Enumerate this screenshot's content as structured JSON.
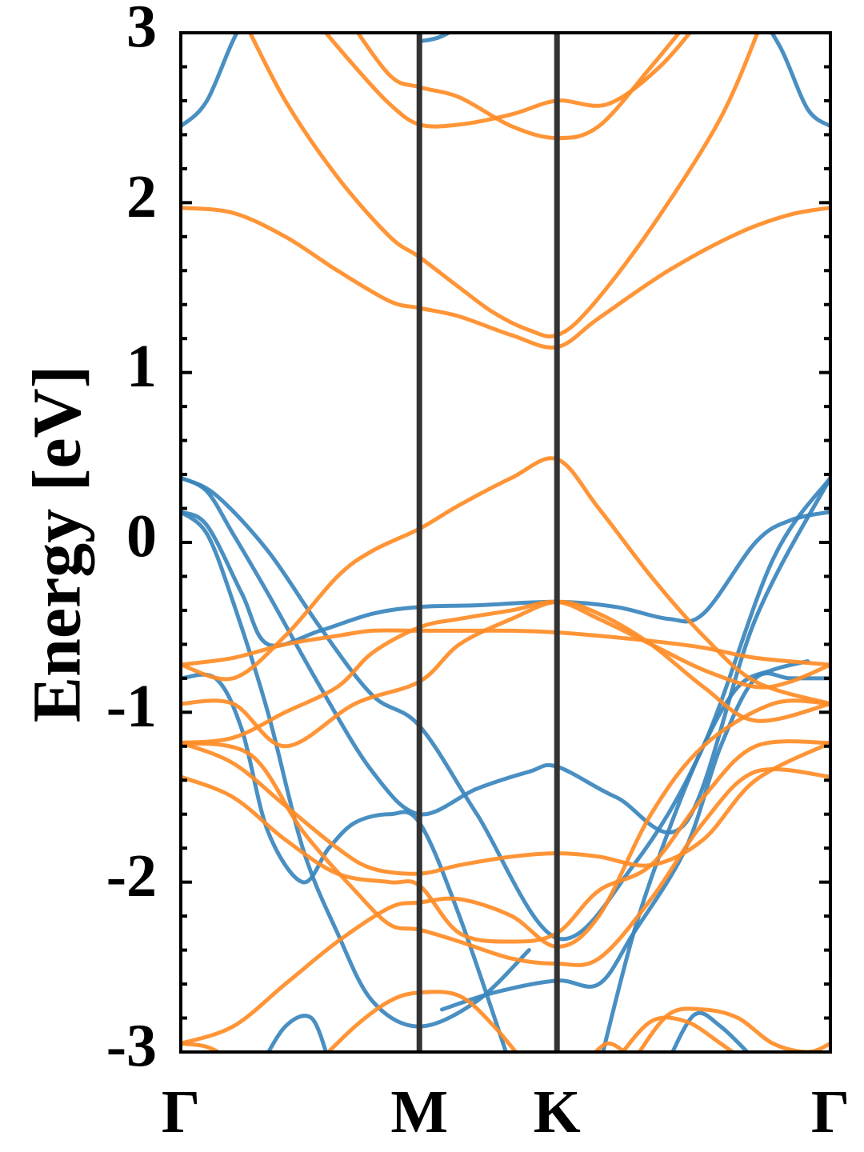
{
  "chart_data": {
    "type": "line",
    "ylabel": "Energy [eV]",
    "ylim": [
      -3,
      3
    ],
    "xlim": [
      0,
      3.73
    ],
    "y_ticks": [
      "3",
      "2",
      "1",
      "0",
      "-1",
      "-2",
      "-3"
    ],
    "y_tick_values": [
      3,
      2,
      1,
      0,
      -1,
      -2,
      -3
    ],
    "high_symmetry_points": [
      {
        "label": "Γ",
        "x": 0
      },
      {
        "label": "M",
        "x": 1.37
      },
      {
        "label": "K",
        "x": 2.16
      },
      {
        "label": "Γ",
        "x": 3.73
      }
    ],
    "colors": {
      "blue": "#3a85bd",
      "orange": "#ff8c26",
      "kpath_line": "#333333"
    },
    "series": [
      {
        "color": "#3a85bd",
        "x": [
          0,
          0.15,
          0.35,
          0.6
        ],
        "y": [
          2.45,
          2.6,
          3.05,
          3.3
        ]
      },
      {
        "color": "#3a85bd",
        "x": [
          1.37,
          1.5,
          1.7
        ],
        "y": [
          2.95,
          2.98,
          3.1
        ]
      },
      {
        "color": "#3a85bd",
        "x": [
          3.3,
          3.45,
          3.6,
          3.73
        ],
        "y": [
          3.15,
          2.9,
          2.55,
          2.45
        ]
      },
      {
        "color": "#ff8c26",
        "x": [
          0.35,
          0.6,
          0.9,
          1.2,
          1.37,
          1.6,
          1.8,
          2.0,
          2.16,
          2.35,
          2.7,
          3.1,
          3.35
        ],
        "y": [
          3.1,
          2.6,
          2.15,
          1.8,
          1.68,
          1.5,
          1.35,
          1.25,
          1.22,
          1.38,
          1.85,
          2.5,
          3.1
        ]
      },
      {
        "color": "#ff8c26",
        "x": [
          0,
          0.3,
          0.6,
          0.9,
          1.2,
          1.37,
          1.6,
          1.9,
          2.16,
          2.4,
          2.8,
          3.2,
          3.5,
          3.73
        ],
        "y": [
          1.97,
          1.94,
          1.8,
          1.6,
          1.42,
          1.38,
          1.33,
          1.22,
          1.15,
          1.32,
          1.6,
          1.82,
          1.93,
          1.97
        ]
      },
      {
        "color": "#ff8c26",
        "x": [
          0.75,
          1.0,
          1.2,
          1.37,
          1.6,
          1.9,
          2.16,
          2.45,
          2.75,
          3.0
        ],
        "y": [
          3.1,
          2.8,
          2.58,
          2.46,
          2.46,
          2.52,
          2.6,
          2.58,
          2.8,
          3.1
        ]
      },
      {
        "color": "#ff8c26",
        "x": [
          0.95,
          1.2,
          1.37,
          1.6,
          1.9,
          2.16,
          2.4,
          2.7,
          2.9
        ],
        "y": [
          3.1,
          2.75,
          2.68,
          2.62,
          2.45,
          2.38,
          2.45,
          2.8,
          3.05
        ]
      },
      {
        "color": "#3a85bd",
        "x": [
          0,
          0.2,
          0.5,
          0.8,
          1.1,
          1.37,
          1.7,
          2.16,
          2.6,
          3.0,
          3.4,
          3.73
        ],
        "y": [
          0.38,
          0.28,
          -0.05,
          -0.5,
          -0.9,
          -1.08,
          -1.6,
          -2.33,
          -1.9,
          -1.2,
          -0.1,
          0.38
        ]
      },
      {
        "color": "#3a85bd",
        "x": [
          0,
          0.15,
          0.3,
          0.5,
          0.8,
          1.1,
          1.37,
          1.7,
          2.0,
          2.16,
          2.5,
          2.9,
          3.3,
          3.73
        ],
        "y": [
          0.38,
          0.3,
          0.05,
          -0.3,
          -0.85,
          -1.35,
          -1.6,
          -1.45,
          -1.35,
          -1.32,
          -1.5,
          -1.65,
          -0.45,
          0.38
        ]
      },
      {
        "color": "#3a85bd",
        "x": [
          0,
          0.15,
          0.35,
          0.5,
          0.8,
          1.1,
          1.37,
          1.7,
          2.16,
          2.5,
          2.8,
          3.0,
          3.3,
          3.5,
          3.73
        ],
        "y": [
          0.18,
          0.1,
          -0.3,
          -0.6,
          -0.52,
          -0.42,
          -0.38,
          -0.37,
          -0.35,
          -0.38,
          -0.45,
          -0.42,
          0.0,
          0.13,
          0.18
        ]
      },
      {
        "color": "#3a85bd",
        "x": [
          0,
          0.15,
          0.3,
          0.5,
          0.7,
          0.9,
          1.1,
          1.37,
          1.7,
          2.0
        ],
        "y": [
          0.18,
          0.05,
          -0.35,
          -1.0,
          -1.8,
          -2.3,
          -2.7,
          -2.85,
          -2.7,
          -2.4
        ]
      },
      {
        "color": "#3a85bd",
        "x": [
          0,
          0.2,
          0.35,
          0.5,
          0.7,
          0.85,
          1.0,
          1.2,
          1.37,
          1.6,
          1.9
        ],
        "y": [
          -0.8,
          -0.8,
          -1.1,
          -1.7,
          -2.0,
          -1.8,
          -1.65,
          -1.6,
          -1.65,
          -2.2,
          -3.1
        ]
      },
      {
        "color": "#3a85bd",
        "x": [
          1.5,
          1.8,
          2.16,
          2.4,
          2.6,
          2.9,
          3.1,
          3.3,
          3.5,
          3.73
        ],
        "y": [
          -2.75,
          -2.65,
          -2.58,
          -2.6,
          -2.3,
          -1.8,
          -1.2,
          -0.8,
          -0.8,
          -0.8
        ]
      },
      {
        "color": "#3a85bd",
        "x": [
          2.4,
          2.6,
          2.8,
          3.0,
          3.2,
          3.4,
          3.6
        ],
        "y": [
          -3.1,
          -2.3,
          -1.7,
          -1.2,
          -0.85,
          -0.75,
          -0.7
        ]
      },
      {
        "color": "#3a85bd",
        "x": [
          0.45,
          0.6,
          0.75,
          0.85
        ],
        "y": [
          -3.1,
          -2.85,
          -2.8,
          -3.05
        ]
      },
      {
        "color": "#3a85bd",
        "x": [
          2.8,
          2.95,
          3.1,
          3.3
        ],
        "y": [
          -3.05,
          -2.78,
          -2.85,
          -3.05
        ]
      },
      {
        "color": "#ff8c26",
        "x": [
          0,
          0.3,
          0.6,
          0.9,
          1.2,
          1.37,
          1.6,
          1.9,
          2.16,
          2.4,
          2.7,
          3.0,
          3.4,
          3.73
        ],
        "y": [
          -2.95,
          -2.85,
          -2.6,
          -2.35,
          -2.15,
          -2.12,
          -2.1,
          -2.2,
          -2.38,
          -2.2,
          -1.6,
          -1.2,
          -0.95,
          -0.95
        ]
      },
      {
        "color": "#ff8c26",
        "x": [
          0,
          0.3,
          0.6,
          1.0,
          1.37,
          1.6,
          1.9,
          2.16,
          2.4,
          2.7,
          3.0,
          3.3,
          3.73
        ],
        "y": [
          -0.95,
          -0.95,
          -1.2,
          -0.95,
          -0.82,
          -0.6,
          -0.45,
          -0.35,
          -0.42,
          -0.6,
          -0.85,
          -1.05,
          -0.95
        ]
      },
      {
        "color": "#ff8c26",
        "x": [
          0,
          0.4,
          0.7,
          1.0,
          1.2,
          1.37,
          1.6,
          1.9,
          2.16,
          2.4,
          2.7,
          3.0,
          3.3,
          3.73
        ],
        "y": [
          -1.18,
          -1.25,
          -1.7,
          -2.05,
          -2.25,
          -2.28,
          -2.35,
          -2.45,
          -2.48,
          -2.45,
          -2.1,
          -1.65,
          -1.35,
          -1.38
        ]
      },
      {
        "color": "#ff8c26",
        "x": [
          0,
          0.3,
          0.6,
          0.9,
          1.2,
          1.37,
          1.6,
          1.9,
          2.16,
          2.4,
          2.7,
          3.0,
          3.3,
          3.73
        ],
        "y": [
          -1.38,
          -1.5,
          -1.75,
          -1.95,
          -2.0,
          -2.02,
          -2.3,
          -2.35,
          -2.3,
          -2.05,
          -1.9,
          -1.5,
          -1.2,
          -1.18
        ]
      },
      {
        "color": "#ff8c26",
        "x": [
          0,
          0.3,
          0.6,
          0.9,
          1.1,
          1.37,
          1.6,
          1.9,
          2.16,
          2.4,
          2.7,
          3.0,
          3.3,
          3.73
        ],
        "y": [
          -1.18,
          -1.3,
          -1.55,
          -1.8,
          -1.92,
          -1.95,
          -1.9,
          -1.85,
          -1.83,
          -1.85,
          -1.9,
          -1.75,
          -1.4,
          -1.18
        ]
      },
      {
        "color": "#ff8c26",
        "x": [
          0,
          0.3,
          0.6,
          0.9,
          1.1,
          1.37,
          1.6,
          1.9,
          2.16,
          2.4,
          2.7,
          3.0,
          3.3,
          3.5,
          3.73
        ],
        "y": [
          -1.18,
          -1.15,
          -1.0,
          -0.85,
          -0.65,
          -0.5,
          -0.45,
          -0.4,
          -0.35,
          -0.45,
          -0.6,
          -0.75,
          -0.85,
          -0.82,
          -0.72
        ]
      },
      {
        "color": "#ff8c26",
        "x": [
          0,
          0.3,
          0.6,
          0.9,
          1.1,
          1.37,
          1.6,
          1.9,
          2.16,
          2.4,
          2.7,
          3.0,
          3.3,
          3.73
        ],
        "y": [
          -0.72,
          -0.68,
          -0.6,
          -0.55,
          -0.52,
          -0.52,
          -0.52,
          -0.52,
          -0.53,
          -0.55,
          -0.58,
          -0.62,
          -0.68,
          -0.72
        ]
      },
      {
        "color": "#ff8c26",
        "x": [
          0,
          0.3,
          0.6,
          0.9,
          1.1,
          1.37,
          1.6,
          1.9,
          2.16,
          2.4,
          2.7,
          3.0,
          3.3,
          3.73
        ],
        "y": [
          -0.72,
          -0.8,
          -0.55,
          -0.2,
          -0.05,
          0.08,
          0.22,
          0.38,
          0.49,
          0.2,
          -0.2,
          -0.55,
          -0.82,
          -0.95
        ]
      },
      {
        "color": "#ff8c26",
        "x": [
          0.75,
          1.0,
          1.2,
          1.37,
          1.6,
          1.8,
          2.0
        ],
        "y": [
          -3.1,
          -2.85,
          -2.7,
          -2.65,
          -2.67,
          -2.85,
          -3.1
        ]
      },
      {
        "color": "#ff8c26",
        "x": [
          2.6,
          2.8,
          3.0,
          3.2,
          3.4,
          3.6,
          3.73
        ],
        "y": [
          -3.05,
          -2.78,
          -2.75,
          -2.8,
          -2.95,
          -3.0,
          -2.95
        ]
      },
      {
        "color": "#ff8c26",
        "x": [
          0,
          0.15,
          0.3,
          0.45
        ],
        "y": [
          -2.95,
          -2.97,
          -3.05,
          -3.15
        ]
      },
      {
        "color": "#ff8c26",
        "x": [
          2.5,
          2.7,
          2.9,
          3.1,
          3.3
        ],
        "y": [
          -3.05,
          -2.82,
          -2.82,
          -2.95,
          -3.1
        ]
      },
      {
        "color": "#ff8c26",
        "x": [
          2.3,
          2.45,
          2.6
        ],
        "y": [
          -3.1,
          -2.95,
          -3.05
        ]
      }
    ]
  }
}
